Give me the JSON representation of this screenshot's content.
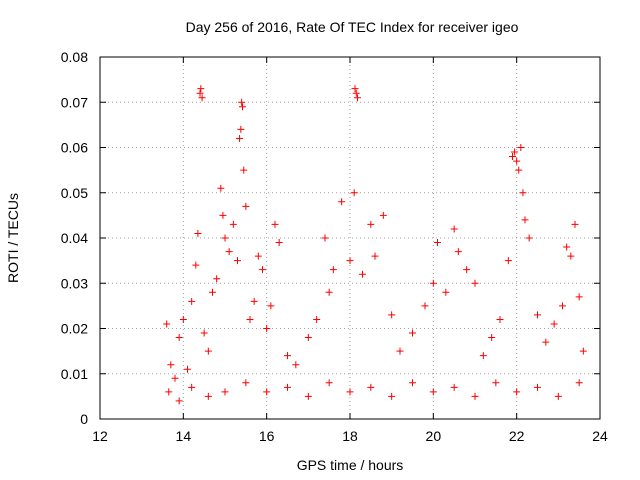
{
  "chart_data": {
    "type": "scatter",
    "title": "Day 256 of 2016, Rate Of TEC Index for receiver igeo",
    "xlabel": "GPS time / hours",
    "ylabel": "ROTI / TECUs",
    "xlim": [
      12,
      24
    ],
    "ylim": [
      0,
      0.08
    ],
    "xticks": [
      12,
      14,
      16,
      18,
      20,
      22,
      24
    ],
    "yticks": [
      0,
      0.01,
      0.02,
      0.03,
      0.04,
      0.05,
      0.06,
      0.07,
      0.08
    ],
    "xtick_labels": [
      "12",
      "14",
      "16",
      "18",
      "20",
      "22",
      "24"
    ],
    "ytick_labels": [
      "0",
      "0.01",
      "0.02",
      "0.03",
      "0.04",
      "0.05",
      "0.06",
      "0.07",
      "0.08"
    ],
    "grid": true,
    "marker": "+",
    "color": "#ff0000",
    "series": [
      {
        "name": "ROTI",
        "points": [
          [
            13.6,
            0.021
          ],
          [
            13.7,
            0.012
          ],
          [
            13.8,
            0.009
          ],
          [
            13.9,
            0.018
          ],
          [
            14.0,
            0.022
          ],
          [
            14.1,
            0.011
          ],
          [
            14.2,
            0.026
          ],
          [
            14.3,
            0.034
          ],
          [
            14.35,
            0.041
          ],
          [
            14.4,
            0.072
          ],
          [
            14.42,
            0.073
          ],
          [
            14.45,
            0.071
          ],
          [
            14.5,
            0.019
          ],
          [
            14.6,
            0.015
          ],
          [
            14.7,
            0.028
          ],
          [
            14.8,
            0.031
          ],
          [
            14.9,
            0.051
          ],
          [
            14.95,
            0.045
          ],
          [
            15.0,
            0.04
          ],
          [
            15.1,
            0.037
          ],
          [
            15.2,
            0.043
          ],
          [
            15.3,
            0.035
          ],
          [
            15.35,
            0.062
          ],
          [
            15.38,
            0.064
          ],
          [
            15.4,
            0.07
          ],
          [
            15.42,
            0.069
          ],
          [
            15.45,
            0.055
          ],
          [
            15.5,
            0.047
          ],
          [
            15.6,
            0.022
          ],
          [
            15.7,
            0.026
          ],
          [
            15.8,
            0.036
          ],
          [
            15.9,
            0.033
          ],
          [
            16.0,
            0.02
          ],
          [
            16.1,
            0.025
          ],
          [
            16.2,
            0.043
          ],
          [
            16.3,
            0.039
          ],
          [
            16.5,
            0.014
          ],
          [
            16.7,
            0.012
          ],
          [
            17.0,
            0.018
          ],
          [
            17.2,
            0.022
          ],
          [
            17.4,
            0.04
          ],
          [
            17.5,
            0.028
          ],
          [
            17.6,
            0.033
          ],
          [
            17.8,
            0.048
          ],
          [
            18.0,
            0.035
          ],
          [
            18.1,
            0.05
          ],
          [
            18.12,
            0.073
          ],
          [
            18.15,
            0.072
          ],
          [
            18.18,
            0.071
          ],
          [
            18.3,
            0.032
          ],
          [
            18.5,
            0.043
          ],
          [
            18.6,
            0.036
          ],
          [
            18.8,
            0.045
          ],
          [
            19.0,
            0.023
          ],
          [
            19.2,
            0.015
          ],
          [
            19.5,
            0.019
          ],
          [
            19.8,
            0.025
          ],
          [
            20.0,
            0.03
          ],
          [
            20.1,
            0.039
          ],
          [
            20.3,
            0.028
          ],
          [
            20.5,
            0.042
          ],
          [
            20.6,
            0.037
          ],
          [
            20.8,
            0.033
          ],
          [
            21.0,
            0.03
          ],
          [
            21.2,
            0.014
          ],
          [
            21.4,
            0.018
          ],
          [
            21.6,
            0.022
          ],
          [
            21.8,
            0.035
          ],
          [
            21.9,
            0.058
          ],
          [
            21.95,
            0.059
          ],
          [
            22.0,
            0.057
          ],
          [
            22.05,
            0.055
          ],
          [
            22.1,
            0.06
          ],
          [
            22.15,
            0.05
          ],
          [
            22.2,
            0.044
          ],
          [
            22.3,
            0.04
          ],
          [
            22.5,
            0.023
          ],
          [
            22.7,
            0.017
          ],
          [
            22.9,
            0.021
          ],
          [
            23.1,
            0.025
          ],
          [
            23.2,
            0.038
          ],
          [
            23.3,
            0.036
          ],
          [
            23.4,
            0.043
          ],
          [
            23.5,
            0.027
          ],
          [
            23.6,
            0.015
          ],
          [
            13.65,
            0.006
          ],
          [
            13.9,
            0.004
          ],
          [
            14.2,
            0.007
          ],
          [
            14.6,
            0.005
          ],
          [
            15.0,
            0.006
          ],
          [
            15.5,
            0.008
          ],
          [
            16.0,
            0.006
          ],
          [
            16.5,
            0.007
          ],
          [
            17.0,
            0.005
          ],
          [
            17.5,
            0.008
          ],
          [
            18.0,
            0.006
          ],
          [
            18.5,
            0.007
          ],
          [
            19.0,
            0.005
          ],
          [
            19.5,
            0.008
          ],
          [
            20.0,
            0.006
          ],
          [
            20.5,
            0.007
          ],
          [
            21.0,
            0.005
          ],
          [
            21.5,
            0.008
          ],
          [
            22.0,
            0.006
          ],
          [
            22.5,
            0.007
          ],
          [
            23.0,
            0.005
          ],
          [
            23.5,
            0.008
          ]
        ]
      }
    ]
  }
}
